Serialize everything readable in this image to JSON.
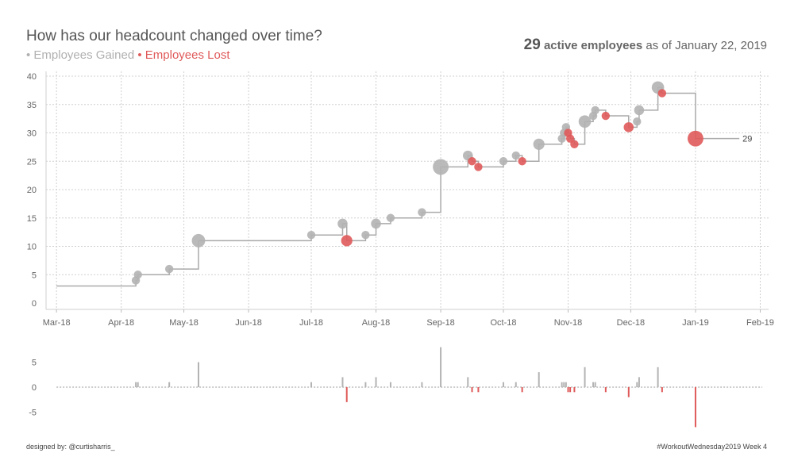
{
  "header": {
    "title": "How has our headcount changed over time?",
    "subtitle_gained": "• Employees Gained",
    "subtitle_lost": "• Employees Lost",
    "kpi_value": "29",
    "kpi_label": "active employees",
    "kpi_suffix": "as of January 22, 2019"
  },
  "footer": {
    "left": "designed by: @curtisharris_",
    "right": "#WorkoutWednesday2019 Week 4"
  },
  "colors": {
    "gained": "#b3b3b3",
    "lost": "#e05a5a",
    "line": "#aaaaaa",
    "grid": "#d0d0d0"
  },
  "chart_data": [
    {
      "type": "line",
      "subtype": "step",
      "title": "",
      "ylim": [
        0,
        40
      ],
      "yticks": [
        0,
        5,
        10,
        15,
        20,
        25,
        30,
        35,
        40
      ],
      "xlim": [
        "2018-02-24",
        "2019-02-05"
      ],
      "xticks": [
        "Mar-18",
        "Apr-18",
        "May-18",
        "Jun-18",
        "Jul-18",
        "Aug-18",
        "Sep-18",
        "Oct-18",
        "Nov-18",
        "Dec-18",
        "Jan-19",
        "Feb-19"
      ],
      "end_label": "29",
      "end_date": "2019-01-22",
      "start": {
        "date": "2018-03-01",
        "value": 3
      },
      "events": [
        {
          "date": "2018-04-08",
          "change": 1,
          "value": 4
        },
        {
          "date": "2018-04-09",
          "change": 1,
          "value": 5
        },
        {
          "date": "2018-04-24",
          "change": 1,
          "value": 6
        },
        {
          "date": "2018-05-08",
          "change": 5,
          "value": 11
        },
        {
          "date": "2018-07-01",
          "change": 1,
          "value": 12
        },
        {
          "date": "2018-07-16",
          "change": 2,
          "value": 14
        },
        {
          "date": "2018-07-18",
          "change": -3,
          "value": 11
        },
        {
          "date": "2018-07-27",
          "change": 1,
          "value": 12
        },
        {
          "date": "2018-08-01",
          "change": 2,
          "value": 14
        },
        {
          "date": "2018-08-08",
          "change": 1,
          "value": 15
        },
        {
          "date": "2018-08-23",
          "change": 1,
          "value": 16
        },
        {
          "date": "2018-09-01",
          "change": 8,
          "value": 24
        },
        {
          "date": "2018-09-14",
          "change": 2,
          "value": 26
        },
        {
          "date": "2018-09-16",
          "change": -1,
          "value": 25
        },
        {
          "date": "2018-09-19",
          "change": -1,
          "value": 24
        },
        {
          "date": "2018-10-01",
          "change": 1,
          "value": 25
        },
        {
          "date": "2018-10-07",
          "change": 1,
          "value": 26
        },
        {
          "date": "2018-10-10",
          "change": -1,
          "value": 25
        },
        {
          "date": "2018-10-18",
          "change": 3,
          "value": 28
        },
        {
          "date": "2018-10-29",
          "change": 1,
          "value": 29
        },
        {
          "date": "2018-10-30",
          "change": 1,
          "value": 30
        },
        {
          "date": "2018-10-31",
          "change": 1,
          "value": 31
        },
        {
          "date": "2018-11-01",
          "change": -1,
          "value": 30
        },
        {
          "date": "2018-11-02",
          "change": -1,
          "value": 29
        },
        {
          "date": "2018-11-04",
          "change": -1,
          "value": 28
        },
        {
          "date": "2018-11-09",
          "change": 4,
          "value": 32
        },
        {
          "date": "2018-11-13",
          "change": 1,
          "value": 33
        },
        {
          "date": "2018-11-14",
          "change": 1,
          "value": 34
        },
        {
          "date": "2018-11-19",
          "change": -1,
          "value": 33
        },
        {
          "date": "2018-11-30",
          "change": -2,
          "value": 31
        },
        {
          "date": "2018-12-04",
          "change": 1,
          "value": 32
        },
        {
          "date": "2018-12-05",
          "change": 2,
          "value": 34
        },
        {
          "date": "2018-12-14",
          "change": 4,
          "value": 38
        },
        {
          "date": "2018-12-16",
          "change": -1,
          "value": 37
        },
        {
          "date": "2019-01-01",
          "change": -8,
          "value": 29
        }
      ]
    },
    {
      "type": "bar",
      "title": "",
      "ylim": [
        -8,
        8
      ],
      "yticks": [
        -5,
        0,
        5
      ],
      "x_from_events_of_chart": 0
    }
  ]
}
